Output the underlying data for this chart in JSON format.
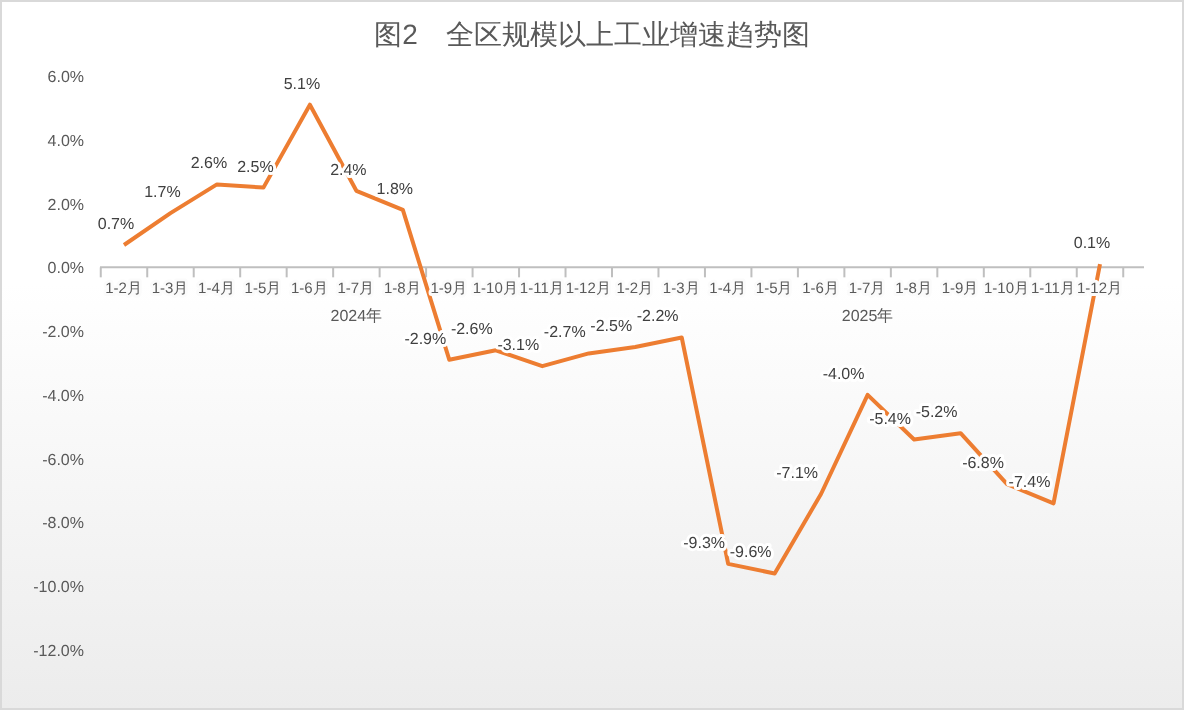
{
  "chart_data": {
    "type": "line",
    "title": "图2　全区规模以上工业增速趋势图",
    "categories": [
      "1-2月",
      "1-3月",
      "1-4月",
      "1-5月",
      "1-6月",
      "1-7月",
      "1-8月",
      "1-9月",
      "1-10月",
      "1-11月",
      "1-12月",
      "1-2月",
      "1-3月",
      "1-4月",
      "1-5月",
      "1-6月",
      "1-7月",
      "1-8月",
      "1-9月",
      "1-10月",
      "1-11月",
      "1-12月"
    ],
    "series": [
      {
        "color": "#ed7d31",
        "values": [
          0.7,
          1.7,
          2.6,
          2.5,
          5.1,
          2.4,
          1.8,
          -2.9,
          -2.6,
          -3.1,
          -2.7,
          -2.5,
          -2.2,
          -9.3,
          -9.6,
          -7.1,
          -4.0,
          -5.4,
          -5.2,
          -6.8,
          -7.4,
          0.1
        ],
        "value_labels": [
          "0.7%",
          "1.7%",
          "2.6%",
          "2.5%",
          "5.1%",
          "2.4%",
          "1.8%",
          "-2.9%",
          "-2.6%",
          "-3.1%",
          "-2.7%",
          "-2.5%",
          "-2.2%",
          "-9.3%",
          "-9.6%",
          "-7.1%",
          "-4.0%",
          "-5.4%",
          "-5.2%",
          "-6.8%",
          "-7.4%",
          "0.1%"
        ]
      }
    ],
    "ylim": [
      -12,
      6
    ],
    "yticks": [
      {
        "value": 6,
        "label": "6.0%"
      },
      {
        "value": 4,
        "label": "4.0%"
      },
      {
        "value": 2,
        "label": "2.0%"
      },
      {
        "value": 0,
        "label": "0.0%"
      },
      {
        "value": -2,
        "label": "-2.0%"
      },
      {
        "value": -4,
        "label": "-4.0%"
      },
      {
        "value": -6,
        "label": "-6.0%"
      },
      {
        "value": -8,
        "label": "-8.0%"
      },
      {
        "value": -10,
        "label": "-10.0%"
      },
      {
        "value": -12,
        "label": "-12.0%"
      }
    ],
    "annotations": [
      "2024年",
      "2025年"
    ],
    "grid": false,
    "marker": "none",
    "line_style": "solid"
  }
}
